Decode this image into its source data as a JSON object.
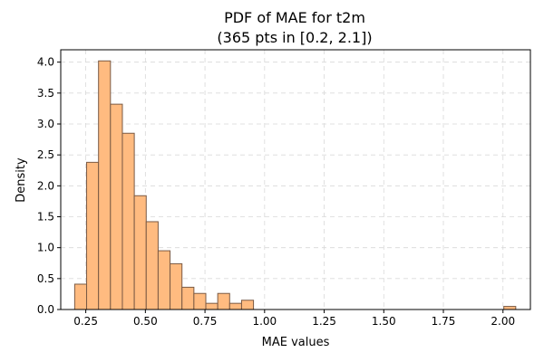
{
  "chart_data": {
    "type": "bar",
    "title": "PDF of MAE for t2m",
    "subtitle": "(365 pts in [0.2, 2.1])",
    "xlabel": "MAE values",
    "ylabel": "Density",
    "xlim": [
      0.145,
      2.115
    ],
    "ylim": [
      0,
      4.2
    ],
    "grid": true,
    "bar_color": "#ffbb80",
    "edge_color": "#7a5a44",
    "grid_color": "#d9d9d9",
    "xticks": [
      "0.25",
      "0.50",
      "0.75",
      "1.00",
      "1.25",
      "1.50",
      "1.75",
      "2.00"
    ],
    "xtick_values": [
      0.25,
      0.5,
      0.75,
      1.0,
      1.25,
      1.5,
      1.75,
      2.0
    ],
    "yticks": [
      "0.0",
      "0.5",
      "1.0",
      "1.5",
      "2.0",
      "2.5",
      "3.0",
      "3.5",
      "4.0"
    ],
    "ytick_values": [
      0.0,
      0.5,
      1.0,
      1.5,
      2.0,
      2.5,
      3.0,
      3.5,
      4.0
    ],
    "bins": [
      {
        "x0": 0.2035,
        "x1": 0.2535,
        "density": 0.41
      },
      {
        "x0": 0.2535,
        "x1": 0.3035,
        "density": 2.38
      },
      {
        "x0": 0.3035,
        "x1": 0.3535,
        "density": 4.02
      },
      {
        "x0": 0.3535,
        "x1": 0.4035,
        "density": 3.32
      },
      {
        "x0": 0.4035,
        "x1": 0.4535,
        "density": 2.85
      },
      {
        "x0": 0.4535,
        "x1": 0.5035,
        "density": 1.84
      },
      {
        "x0": 0.5035,
        "x1": 0.5535,
        "density": 1.42
      },
      {
        "x0": 0.5535,
        "x1": 0.6035,
        "density": 0.95
      },
      {
        "x0": 0.6035,
        "x1": 0.6535,
        "density": 0.74
      },
      {
        "x0": 0.6535,
        "x1": 0.7035,
        "density": 0.36
      },
      {
        "x0": 0.7035,
        "x1": 0.7535,
        "density": 0.26
      },
      {
        "x0": 0.7535,
        "x1": 0.8035,
        "density": 0.1
      },
      {
        "x0": 0.8035,
        "x1": 0.8535,
        "density": 0.26
      },
      {
        "x0": 0.8535,
        "x1": 0.9035,
        "density": 0.1
      },
      {
        "x0": 0.9035,
        "x1": 0.9535,
        "density": 0.15
      },
      {
        "x0": 0.9535,
        "x1": 1.0035,
        "density": 0.0
      },
      {
        "x0": 2.0035,
        "x1": 2.0535,
        "density": 0.05
      }
    ]
  }
}
